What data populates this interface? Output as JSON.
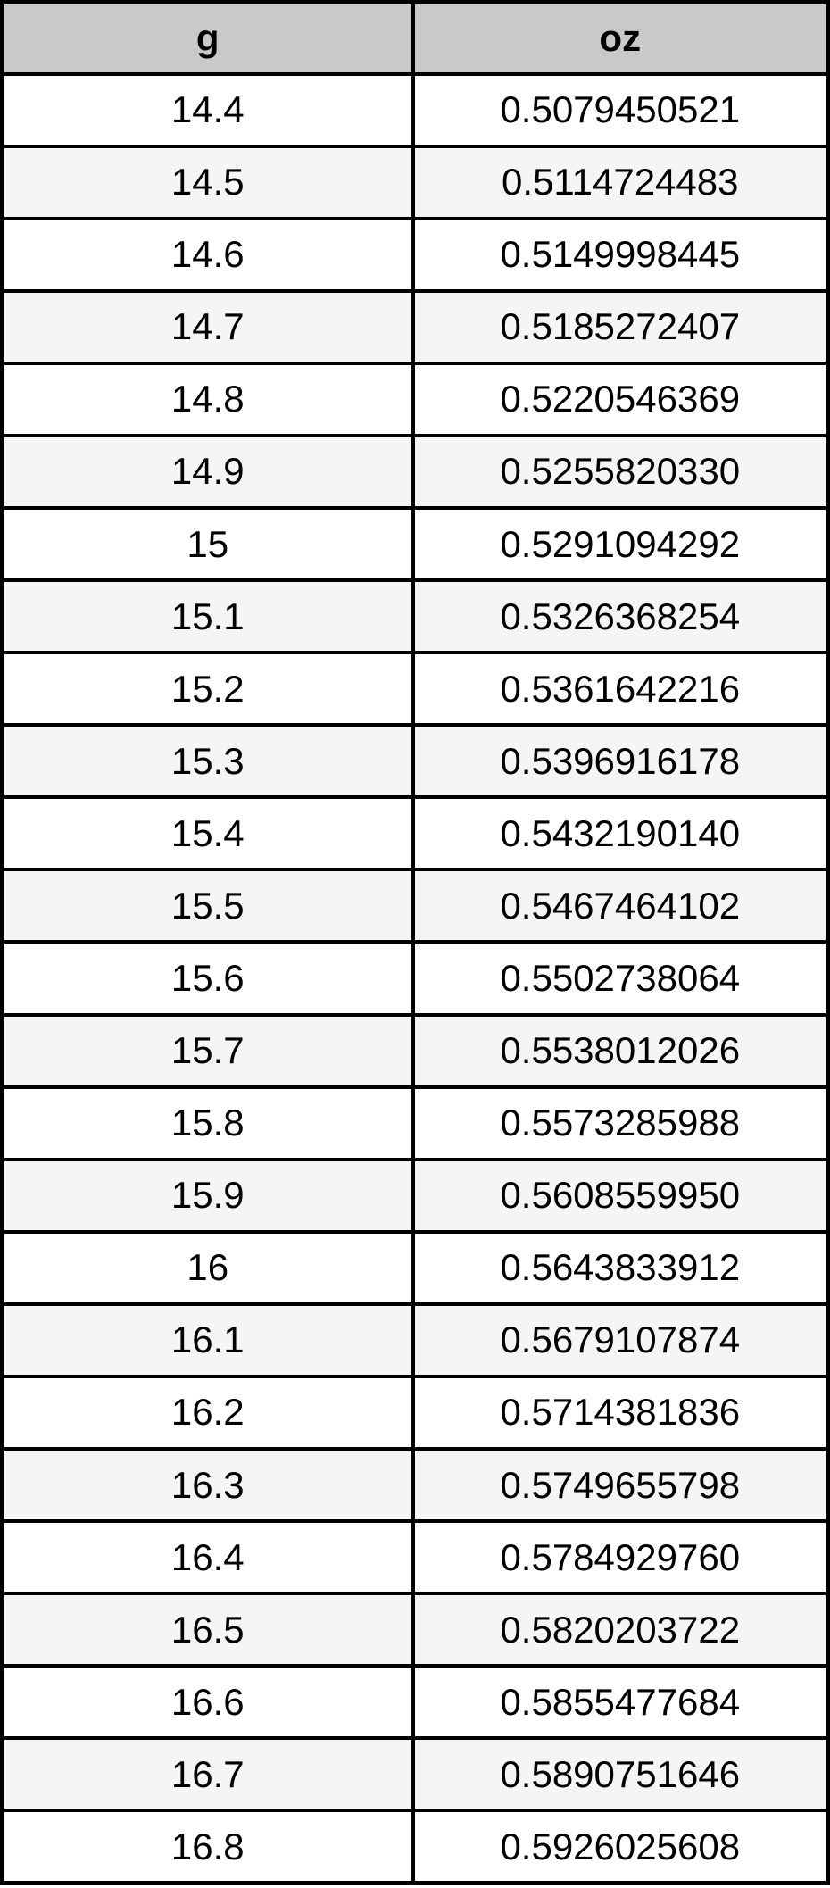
{
  "table": {
    "header": {
      "col1": "g",
      "col2": "oz"
    },
    "rows": [
      {
        "g": "14.4",
        "oz": "0.5079450521"
      },
      {
        "g": "14.5",
        "oz": "0.5114724483"
      },
      {
        "g": "14.6",
        "oz": "0.5149998445"
      },
      {
        "g": "14.7",
        "oz": "0.5185272407"
      },
      {
        "g": "14.8",
        "oz": "0.5220546369"
      },
      {
        "g": "14.9",
        "oz": "0.5255820330"
      },
      {
        "g": "15",
        "oz": "0.5291094292"
      },
      {
        "g": "15.1",
        "oz": "0.5326368254"
      },
      {
        "g": "15.2",
        "oz": "0.5361642216"
      },
      {
        "g": "15.3",
        "oz": "0.5396916178"
      },
      {
        "g": "15.4",
        "oz": "0.5432190140"
      },
      {
        "g": "15.5",
        "oz": "0.5467464102"
      },
      {
        "g": "15.6",
        "oz": "0.5502738064"
      },
      {
        "g": "15.7",
        "oz": "0.5538012026"
      },
      {
        "g": "15.8",
        "oz": "0.5573285988"
      },
      {
        "g": "15.9",
        "oz": "0.5608559950"
      },
      {
        "g": "16",
        "oz": "0.5643833912"
      },
      {
        "g": "16.1",
        "oz": "0.5679107874"
      },
      {
        "g": "16.2",
        "oz": "0.5714381836"
      },
      {
        "g": "16.3",
        "oz": "0.5749655798"
      },
      {
        "g": "16.4",
        "oz": "0.5784929760"
      },
      {
        "g": "16.5",
        "oz": "0.5820203722"
      },
      {
        "g": "16.6",
        "oz": "0.5855477684"
      },
      {
        "g": "16.7",
        "oz": "0.5890751646"
      },
      {
        "g": "16.8",
        "oz": "0.5926025608"
      }
    ],
    "colors": {
      "header_bg": "#c9c9c9",
      "alt_row_bg": "#f5f5f5",
      "border": "#000000",
      "text": "#000000"
    }
  },
  "chart_data": {
    "type": "table",
    "columns": [
      "g",
      "oz"
    ],
    "g_values": [
      14.4,
      14.5,
      14.6,
      14.7,
      14.8,
      14.9,
      15,
      15.1,
      15.2,
      15.3,
      15.4,
      15.5,
      15.6,
      15.7,
      15.8,
      15.9,
      16,
      16.1,
      16.2,
      16.3,
      16.4,
      16.5,
      16.6,
      16.7,
      16.8
    ],
    "oz_values": [
      0.5079450521,
      0.5114724483,
      0.5149998445,
      0.5185272407,
      0.5220546369,
      0.525582033,
      0.5291094292,
      0.5326368254,
      0.5361642216,
      0.5396916178,
      0.543219014,
      0.5467464102,
      0.5502738064,
      0.5538012026,
      0.5573285988,
      0.560855995,
      0.5643833912,
      0.5679107874,
      0.5714381836,
      0.5749655798,
      0.578492976,
      0.5820203722,
      0.5855477684,
      0.5890751646,
      0.5926025608
    ],
    "row_striping": "alternate rows shaded",
    "grid": true
  }
}
